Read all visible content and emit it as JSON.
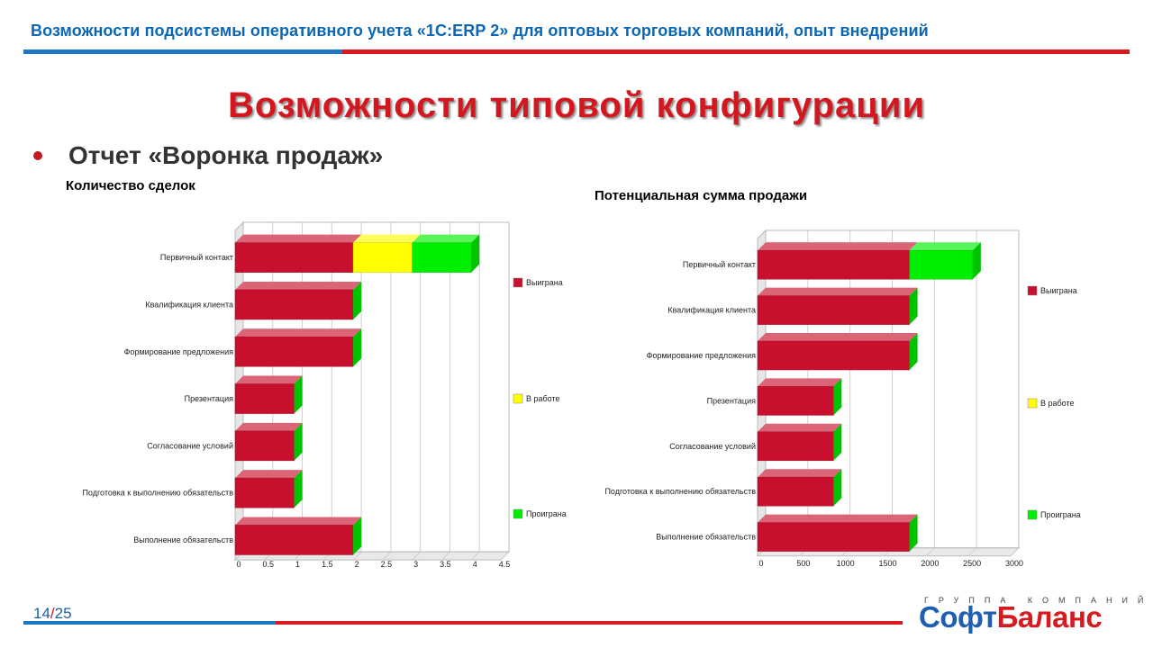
{
  "header": {
    "title": "Возможности подсистемы оперативного учета «1С:ERP 2» для оптовых торговых компаний, опыт внедрений"
  },
  "slide": {
    "title": "Возможности типовой конфигурации"
  },
  "bullet": {
    "text": "Отчет «Воронка продаж»"
  },
  "colors": {
    "won": "#c8102e",
    "in_work": "#ffff00",
    "lost": "#00ee00",
    "brand_blue": "#1f5fb3",
    "brand_red": "#d71920"
  },
  "chart_data": [
    {
      "type": "bar",
      "orientation": "horizontal",
      "stacked": true,
      "title": "Количество сделок",
      "categories": [
        "Первичный контакт",
        "Квалификация клиента",
        "Формирование предложения",
        "Презентация",
        "Согласование условий",
        "Подготовка к выполнению обязательств",
        "Выполнение обязательств"
      ],
      "series": [
        {
          "name": "Выиграна",
          "values": [
            2,
            2,
            2,
            1,
            1,
            1,
            2
          ]
        },
        {
          "name": "В работе",
          "values": [
            1,
            0,
            0,
            0,
            0,
            0,
            0
          ]
        },
        {
          "name": "Проиграна",
          "values": [
            1,
            0,
            0,
            0,
            0,
            0,
            0
          ]
        }
      ],
      "xlim": [
        0,
        4.5
      ],
      "xticks": [
        "0",
        "0.5",
        "1",
        "1.5",
        "2",
        "2.5",
        "3",
        "3.5",
        "4",
        "4.5"
      ],
      "grid": true,
      "legend": "right"
    },
    {
      "type": "bar",
      "orientation": "horizontal",
      "stacked": true,
      "title": "Потенциальная сумма продажи",
      "categories": [
        "Первичный контакт",
        "Квалификация клиента",
        "Формирование предложения",
        "Презентация",
        "Согласование условий",
        "Подготовка к выполнению обязательств",
        "Выполнение обязательств"
      ],
      "series": [
        {
          "name": "Выиграна",
          "values": [
            1800,
            1800,
            1800,
            900,
            900,
            900,
            1800
          ]
        },
        {
          "name": "В работе",
          "values": [
            0,
            0,
            0,
            0,
            0,
            0,
            0
          ]
        },
        {
          "name": "Проиграна",
          "values": [
            750,
            0,
            0,
            0,
            0,
            0,
            0
          ]
        }
      ],
      "xlim": [
        0,
        3000
      ],
      "xticks": [
        "0",
        "500",
        "1000",
        "1500",
        "2000",
        "2500",
        "3000"
      ],
      "grid": true,
      "legend": "right"
    }
  ],
  "footer": {
    "page_current": "14",
    "page_sep": "/",
    "page_total": "25"
  },
  "logo": {
    "group_text": "ГРУППА КОМПАНИЙ",
    "part1": "Софт",
    "part2": "Баланс"
  }
}
